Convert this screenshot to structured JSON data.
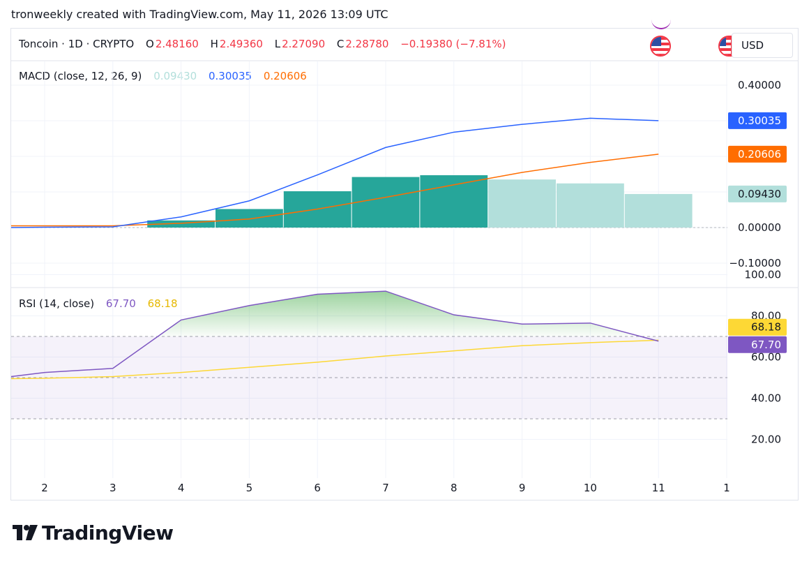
{
  "header": {
    "attribution": "tronweekly created with TradingView.com, May 11, 2026 13:09 UTC"
  },
  "symbol": {
    "name": "Toncoin · 1D · CRYPTO",
    "o_label": "O",
    "o": "2.48160",
    "h_label": "H",
    "h": "2.49360",
    "l_label": "L",
    "l": "2.27090",
    "c_label": "C",
    "c": "2.28780",
    "change": "−0.19380 (−7.81%)"
  },
  "currency": "USD",
  "colors": {
    "macd_line": "#2962ff",
    "signal_line": "#ff6d00",
    "hist_rising": "#26a69a",
    "hist_falling": "#b2dfdb",
    "rsi_line": "#7e57c2",
    "rsi_ma": "#fdd835",
    "loss": "#f23645"
  },
  "macd": {
    "legend_title": "MACD (close, 12, 26, 9)",
    "hist_value": "0.09430",
    "macd_value": "0.30035",
    "signal_value": "0.20606"
  },
  "rsi": {
    "legend_title": "RSI (14, close)",
    "rsi_value": "67.70",
    "ma_value": "68.18"
  },
  "brand": {
    "name": "TradingView"
  },
  "chart_data": [
    {
      "type": "bar",
      "title": "MACD (close, 12, 26, 9)",
      "x": [
        2,
        3,
        4,
        5,
        6,
        7,
        8,
        9,
        10,
        11
      ],
      "x_tick_labels": [
        "2",
        "3",
        "4",
        "5",
        "6",
        "7",
        "8",
        "9",
        "10",
        "11",
        "1"
      ],
      "ylim": [
        -0.13,
        0.43
      ],
      "y_ticks": [
        "0.40000",
        "0.30000",
        "0.20000",
        "0.10000",
        "0.00000",
        "−0.10000"
      ],
      "series": [
        {
          "name": "Histogram",
          "kind": "bar",
          "values": [
            0.0,
            0.0,
            0.02,
            0.052,
            0.102,
            0.142,
            0.147,
            0.135,
            0.124,
            0.0943
          ]
        },
        {
          "name": "MACD",
          "kind": "line",
          "values": [
            0.001,
            0.002,
            0.03,
            0.075,
            0.148,
            0.225,
            0.268,
            0.29,
            0.307,
            0.30035
          ]
        },
        {
          "name": "Signal",
          "kind": "line",
          "values": [
            0.005,
            0.005,
            0.012,
            0.024,
            0.052,
            0.085,
            0.12,
            0.155,
            0.183,
            0.20606
          ]
        }
      ],
      "last_value_labels": [
        "0.30035",
        "0.20606",
        "0.09430"
      ],
      "zero_line": true,
      "grid": true
    },
    {
      "type": "line",
      "title": "RSI (14, close)",
      "x": [
        1.5,
        2,
        3,
        4,
        5,
        6,
        7,
        8,
        9,
        10,
        11
      ],
      "x_tick_labels": [
        "2",
        "3",
        "4",
        "5",
        "6",
        "7",
        "8",
        "9",
        "10",
        "11",
        "1"
      ],
      "ylim": [
        13,
        100
      ],
      "y_ticks": [
        "100.00",
        "80.00",
        "60.00",
        "40.00",
        "20.00"
      ],
      "series": [
        {
          "name": "RSI",
          "values": [
            50.5,
            52.5,
            54.5,
            78,
            85,
            90.5,
            92,
            80.5,
            76,
            76.5,
            67.7
          ]
        },
        {
          "name": "RSI-based MA",
          "values": [
            49.5,
            49.7,
            50.5,
            52.5,
            55,
            57.5,
            60.5,
            63,
            65.5,
            67,
            68.18
          ]
        }
      ],
      "bands": {
        "upper": 70,
        "middle": 50,
        "lower": 30
      },
      "last_value_labels": [
        "68.18",
        "67.70"
      ],
      "grid": true
    }
  ]
}
